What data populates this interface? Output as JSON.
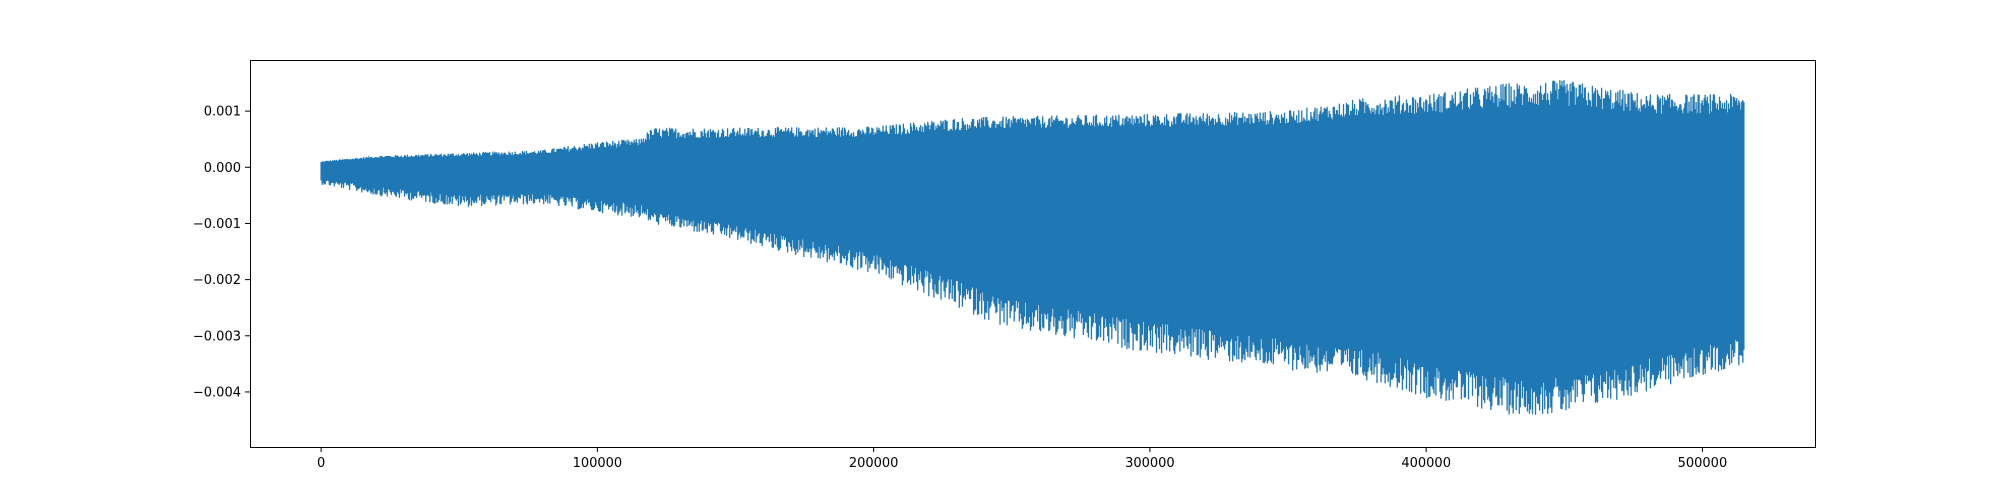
{
  "chart_data": {
    "type": "line",
    "title": "",
    "xlabel": "",
    "ylabel": "",
    "xlim": [
      -25750,
      540750
    ],
    "ylim": [
      -0.00498,
      0.00191
    ],
    "xticks": [
      0,
      100000,
      200000,
      300000,
      400000,
      500000
    ],
    "xtick_labels": [
      "0",
      "100000",
      "200000",
      "300000",
      "400000",
      "500000"
    ],
    "yticks": [
      0.001,
      0.0,
      -0.001,
      -0.002,
      -0.003,
      -0.004
    ],
    "ytick_labels": [
      "0.001",
      "0.000",
      "−0.001",
      "−0.002",
      "−0.003",
      "−0.004"
    ],
    "grid": false,
    "legend": "none",
    "x_max": 515000,
    "series": [
      {
        "color": "#1f77b4",
        "envelope": {
          "x": [
            0,
            20000,
            50000,
            80000,
            100000,
            115000,
            120000,
            150000,
            200000,
            230000,
            250000,
            300000,
            350000,
            380000,
            400000,
            430000,
            450000,
            480000,
            515000
          ],
          "upper": [
            0.0001,
            0.0002,
            0.00025,
            0.0003,
            0.00045,
            0.0005,
            0.0007,
            0.0007,
            0.00072,
            0.00088,
            0.0009,
            0.00095,
            0.001,
            0.00125,
            0.0013,
            0.0015,
            0.00155,
            0.0013,
            0.0013
          ],
          "lower": [
            -0.0003,
            -0.0005,
            -0.0007,
            -0.00065,
            -0.0008,
            -0.0009,
            -0.001,
            -0.0013,
            -0.0019,
            -0.0025,
            -0.0029,
            -0.0033,
            -0.0036,
            -0.0038,
            -0.0041,
            -0.0044,
            -0.0044,
            -0.004,
            -0.0035
          ],
          "dense_upper": [
            5e-05,
            0.0001,
            0.0001,
            0.00012,
            0.00015,
            0.0002,
            0.00025,
            0.0003,
            0.0003,
            0.00035,
            0.0004,
            0.0004,
            0.00045,
            0.0005,
            0.0005,
            0.0005,
            0.0005,
            0.0005,
            0.0005
          ],
          "dense_lower": [
            -0.0001,
            -0.0002,
            -0.0003,
            -0.0003,
            -0.0004,
            -0.0004,
            -0.0006,
            -0.0008,
            -0.0012,
            -0.0016,
            -0.0019,
            -0.0023,
            -0.0026,
            -0.0028,
            -0.003,
            -0.0032,
            -0.0032,
            -0.0029,
            -0.0026
          ]
        }
      }
    ]
  }
}
